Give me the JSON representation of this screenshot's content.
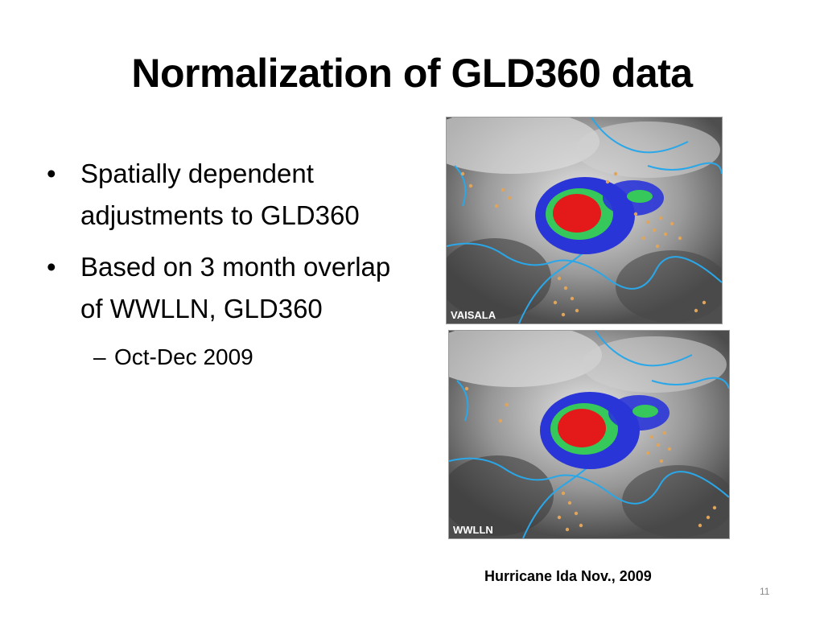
{
  "slide": {
    "title": "Normalization of GLD360 data",
    "bullets": [
      "Spatially dependent adjustments to GLD360",
      "Based on 3 month overlap of WWLLN, GLD360"
    ],
    "sub_bullet": "Oct-Dec 2009",
    "images": [
      {
        "label": "VAISALA"
      },
      {
        "label": "WWLLN"
      }
    ],
    "caption": "Hurricane Ida Nov., 2009",
    "page_number": "11"
  }
}
